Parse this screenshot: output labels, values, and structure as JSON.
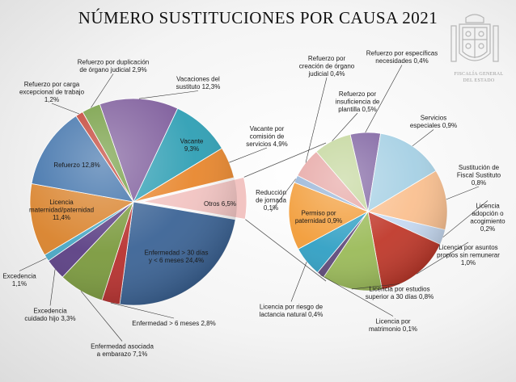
{
  "page": {
    "title": "NÚMERO SUSTITUCIONES POR CAUSA 2021"
  },
  "emblem": {
    "line1": "FISCALÍA GENERAL",
    "line2": "DEL ESTADO"
  },
  "chart_data": {
    "type": "pie",
    "subtype": "pie-of-pie",
    "title": "NÚMERO SUSTITUCIONES POR CAUSA 2021",
    "main": [
      {
        "name": "Vacaciones del sustituto",
        "value": 12.3,
        "color": "#7c5a9a",
        "label": [
          "Vacaciones del",
          "sustituto 12,3%"
        ]
      },
      {
        "name": "Vacante",
        "value": 9.3,
        "color": "#2f9fb4",
        "label": [
          "Vacante",
          "9,3%"
        ]
      },
      {
        "name": "Vacante por comisión de servicios",
        "value": 4.9,
        "color": "#e8872e",
        "label": [
          "Vacante por",
          "comisión de",
          "servicios 4,9%"
        ]
      },
      {
        "name": "Otros",
        "value": 6.5,
        "color": "#f2c4c2",
        "label": [
          "Otros 6,5%"
        ]
      },
      {
        "name": "Enfermedad > 30 días y < 6 meses",
        "value": 24.4,
        "color": "#3c6496",
        "label": [
          "Enfermedad > 30 días",
          "y < 6 meses 24,4%"
        ]
      },
      {
        "name": "Enfermedad > 6 meses",
        "value": 2.8,
        "color": "#b8312f",
        "label": [
          "Enfermedad > 6 meses 2,8%"
        ]
      },
      {
        "name": "Enfermedad asociada a embarazo",
        "value": 7.1,
        "color": "#7b9a3e",
        "label": [
          "Enfermedad asociada",
          "a embarazo 7,1%"
        ]
      },
      {
        "name": "Excedencia cuidado hijo",
        "value": 3.3,
        "color": "#5b3f84",
        "label": [
          "Excedencia",
          "cuidado hijo 3,3%"
        ]
      },
      {
        "name": "Excedencia",
        "value": 1.1,
        "color": "#48a7c4",
        "label": [
          "Excedencia",
          "1,1%"
        ]
      },
      {
        "name": "Licencia maternidad/paternidad",
        "value": 11.4,
        "color": "#d9822b",
        "label": [
          "Licencia",
          "maternidad/paternidad",
          "11,4%"
        ]
      },
      {
        "name": "Refuerzo",
        "value": 12.8,
        "color": "#3a6ea8",
        "label": [
          "Refuerzo 12,8%"
        ]
      },
      {
        "name": "Refuerzo por carga excepcional de trabajo",
        "value": 1.2,
        "color": "#c0392b",
        "label": [
          "Refuerzo por carga",
          "excepcional de trabajo",
          "1,2%"
        ]
      },
      {
        "name": "Refuerzo por duplicación de órgano judicial",
        "value": 2.9,
        "color": "#6f9a3b",
        "label": [
          "Refuerzo por duplicación",
          "de órgano judicial 2,9%"
        ]
      }
    ],
    "secondary": [
      {
        "name": "Refuerzo por específicas necesidades",
        "value": 0.4,
        "color": "#8064a2",
        "label": [
          "Refuerzo por específicas",
          "necesidades 0,4%"
        ]
      },
      {
        "name": "Servicios especiales",
        "value": 0.9,
        "color": "#a6d0e4",
        "label": [
          "Servicios",
          "especiales 0,9%"
        ]
      },
      {
        "name": "Sustitución de Fiscal Sustituto",
        "value": 0.8,
        "color": "#fac090",
        "label": [
          "Sustitución de",
          "Fiscal Sustituto",
          "0,8%"
        ]
      },
      {
        "name": "Licencia adopción o acogimiento",
        "value": 0.2,
        "color": "#c6d9f1",
        "label": [
          "Licencia",
          "adopción o",
          "acogimiento",
          "0,2%"
        ]
      },
      {
        "name": "Licencia por asuntos propios sin remunerar",
        "value": 1.0,
        "color": "#c0392b",
        "label": [
          "Licencia por asuntos",
          "propios sin remunerar",
          "1,0%"
        ]
      },
      {
        "name": "Licencia por estudios superior a 30 días",
        "value": 0.8,
        "color": "#9bbb59",
        "label": [
          "Licencia por estudios",
          "superior a 30 días 0,8%"
        ]
      },
      {
        "name": "Licencia por matrimonio",
        "value": 0.1,
        "color": "#604a7b",
        "label": [
          "Licencia por",
          "matrimonio 0,1%"
        ]
      },
      {
        "name": "Licencia por riesgo de lactancia natural",
        "value": 0.4,
        "color": "#31a0c4",
        "label": [
          "Licencia por riesgo de",
          "lactancia natural 0,4%"
        ]
      },
      {
        "name": "Permiso por paternidad",
        "value": 0.9,
        "color": "#f29c38",
        "label": [
          "Permiso por",
          "paternidad 0,9%"
        ]
      },
      {
        "name": "Reducción de jornada",
        "value": 0.1,
        "color": "#95b3d7",
        "label": [
          "Reducción",
          "de jornada",
          "0,1%"
        ]
      },
      {
        "name": "Refuerzo por creación de órgano judicial",
        "value": 0.4,
        "color": "#e6a5a3",
        "label": [
          "Refuerzo por",
          "creación de órgano",
          "judicial 0,4%"
        ]
      },
      {
        "name": "Refuerzo por insuficiencia de plantilla",
        "value": 0.5,
        "color": "#c3d69b",
        "label": [
          "Refuerzo por",
          "insuficiencia de",
          "plantilla 0,5%"
        ]
      }
    ]
  }
}
